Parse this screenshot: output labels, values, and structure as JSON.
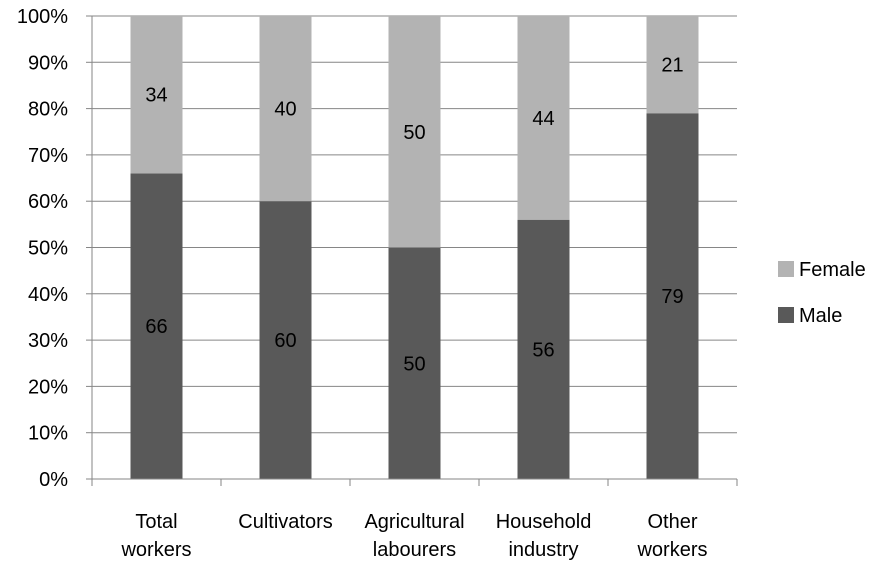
{
  "chart_data": {
    "type": "bar",
    "stacked": true,
    "percent": true,
    "categories": [
      [
        "Total",
        "workers"
      ],
      [
        "Cultivators"
      ],
      [
        "Agricultural",
        "labourers"
      ],
      [
        "Household",
        "industry"
      ],
      [
        "Other",
        "workers"
      ]
    ],
    "series": [
      {
        "name": "Male",
        "values": [
          66,
          60,
          50,
          56,
          79
        ],
        "color": "#595959"
      },
      {
        "name": "Female",
        "values": [
          34,
          40,
          50,
          44,
          21
        ],
        "color": "#b3b3b3"
      }
    ],
    "yticks": [
      "0%",
      "10%",
      "20%",
      "30%",
      "40%",
      "50%",
      "60%",
      "70%",
      "80%",
      "90%",
      "100%"
    ],
    "ylim": [
      0,
      100
    ],
    "legend_position": "right",
    "grid": true,
    "axis_color": "#868686"
  }
}
